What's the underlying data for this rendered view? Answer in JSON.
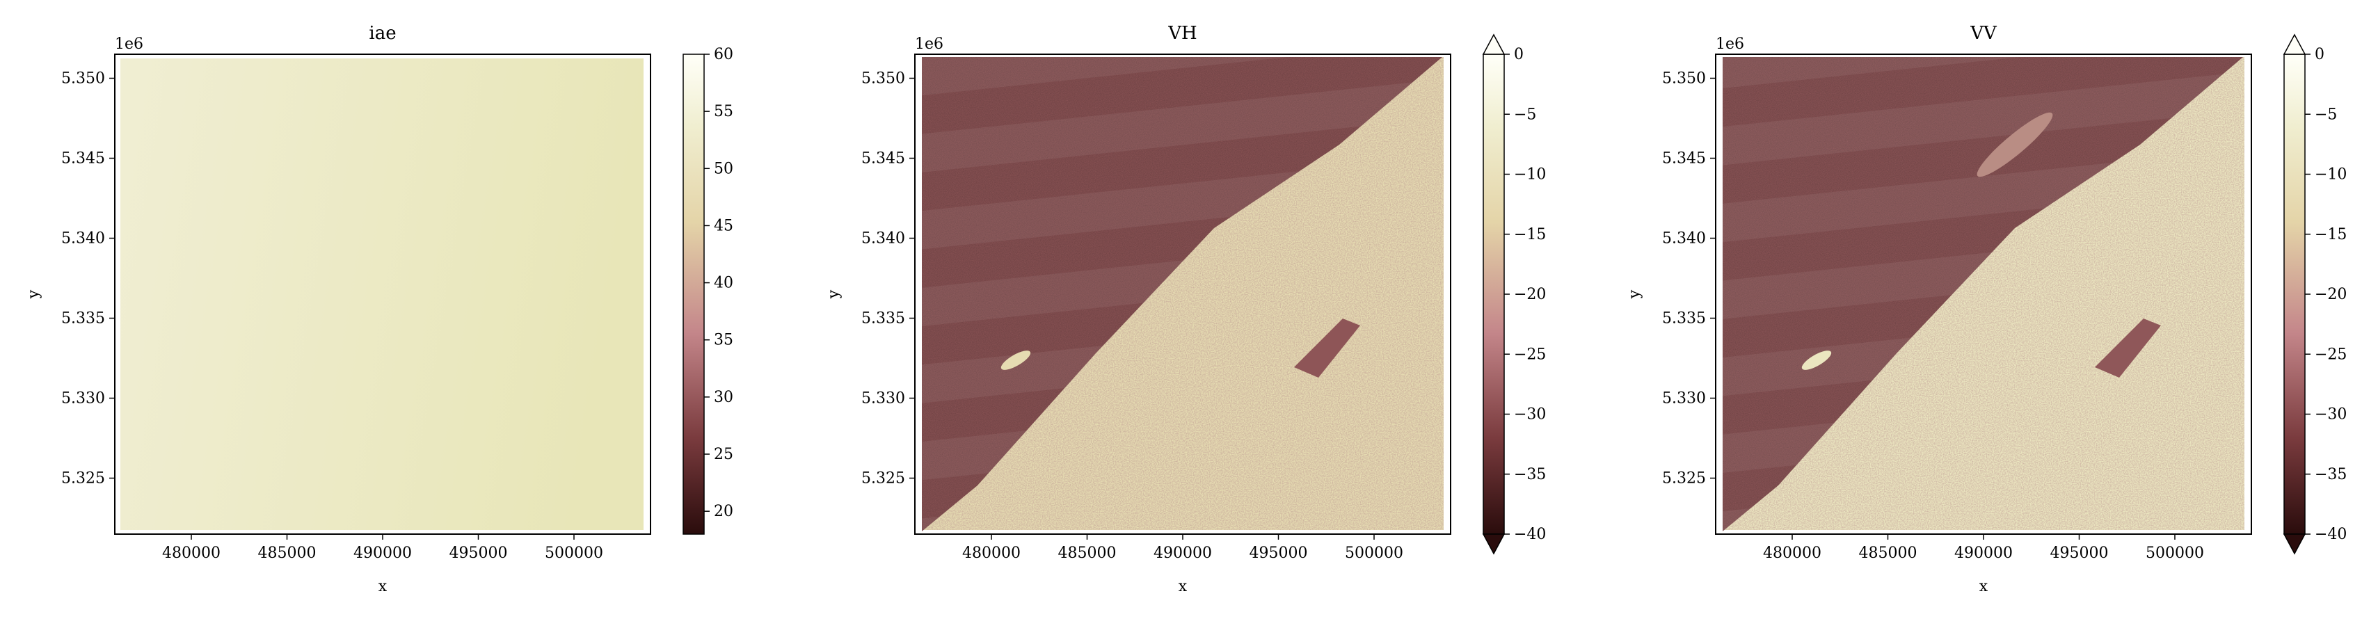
{
  "figure": {
    "panels": [
      {
        "title": "iae",
        "xlabel": "x",
        "ylabel": "y",
        "offset_label": "1e6",
        "cbar_extend": false,
        "cbar_ticks": [
          "60",
          "55",
          "50",
          "45",
          "40",
          "35",
          "30",
          "25",
          "20"
        ]
      },
      {
        "title": "VH",
        "xlabel": "x",
        "ylabel": "y",
        "offset_label": "1e6",
        "cbar_extend": true,
        "cbar_ticks": [
          "0",
          "−5",
          "−10",
          "−15",
          "−20",
          "−25",
          "−30",
          "−35",
          "−40"
        ]
      },
      {
        "title": "VV",
        "xlabel": "x",
        "ylabel": "y",
        "offset_label": "1e6",
        "cbar_extend": true,
        "cbar_ticks": [
          "0",
          "−5",
          "−10",
          "−15",
          "−20",
          "−25",
          "−30",
          "−35",
          "−40"
        ]
      }
    ]
  },
  "chart_data": [
    {
      "type": "heatmap",
      "title": "iae",
      "xlabel": "x",
      "ylabel": "y",
      "x_tick_labels": [
        "480000",
        "485000",
        "490000",
        "495000",
        "500000"
      ],
      "y_tick_labels": [
        "5.325",
        "5.330",
        "5.335",
        "5.340",
        "5.345",
        "5.350"
      ],
      "y_offset": "1e6",
      "xlim": [
        476000,
        504000
      ],
      "ylim": [
        5321500,
        5351500
      ],
      "colorbar": {
        "range": [
          18,
          60
        ],
        "ticks": [
          20,
          25,
          30,
          35,
          40,
          45,
          50,
          55,
          60
        ],
        "extend": "neither"
      },
      "colormap": [
        "#2a0c0c",
        "#7a3b3e",
        "#c4868a",
        "#e4d4a8",
        "#f0eed0",
        "#fffff8"
      ],
      "field_description_values": {
        "left_edge": 49,
        "right_edge": 51
      }
    },
    {
      "type": "heatmap",
      "title": "VH",
      "xlabel": "x",
      "ylabel": "y",
      "x_tick_labels": [
        "480000",
        "485000",
        "490000",
        "495000",
        "500000"
      ],
      "y_tick_labels": [
        "5.325",
        "5.330",
        "5.335",
        "5.340",
        "5.345",
        "5.350"
      ],
      "y_offset": "1e6",
      "xlim": [
        476000,
        504000
      ],
      "ylim": [
        5321500,
        5351500
      ],
      "colorbar": {
        "range": [
          -40,
          0
        ],
        "ticks": [
          -40,
          -35,
          -30,
          -25,
          -20,
          -15,
          -10,
          -5,
          0
        ],
        "extend": "both"
      },
      "colormap": [
        "#2a0c0c",
        "#7a3b3e",
        "#c4868a",
        "#e4d4a8",
        "#f0eed0",
        "#fffff8"
      ],
      "water_value": -27,
      "land_value": -12
    },
    {
      "type": "heatmap",
      "title": "VV",
      "xlabel": "x",
      "ylabel": "y",
      "x_tick_labels": [
        "480000",
        "485000",
        "490000",
        "495000",
        "500000"
      ],
      "y_tick_labels": [
        "5.325",
        "5.330",
        "5.335",
        "5.340",
        "5.345",
        "5.350"
      ],
      "y_offset": "1e6",
      "xlim": [
        476000,
        504000
      ],
      "ylim": [
        5321500,
        5351500
      ],
      "colorbar": {
        "range": [
          -40,
          0
        ],
        "ticks": [
          -40,
          -35,
          -30,
          -25,
          -20,
          -15,
          -10,
          -5,
          0
        ],
        "extend": "both"
      },
      "colormap": [
        "#2a0c0c",
        "#7a3b3e",
        "#c4868a",
        "#e4d4a8",
        "#f0eed0",
        "#fffff8"
      ],
      "water_value": -26,
      "land_value": -9
    }
  ]
}
